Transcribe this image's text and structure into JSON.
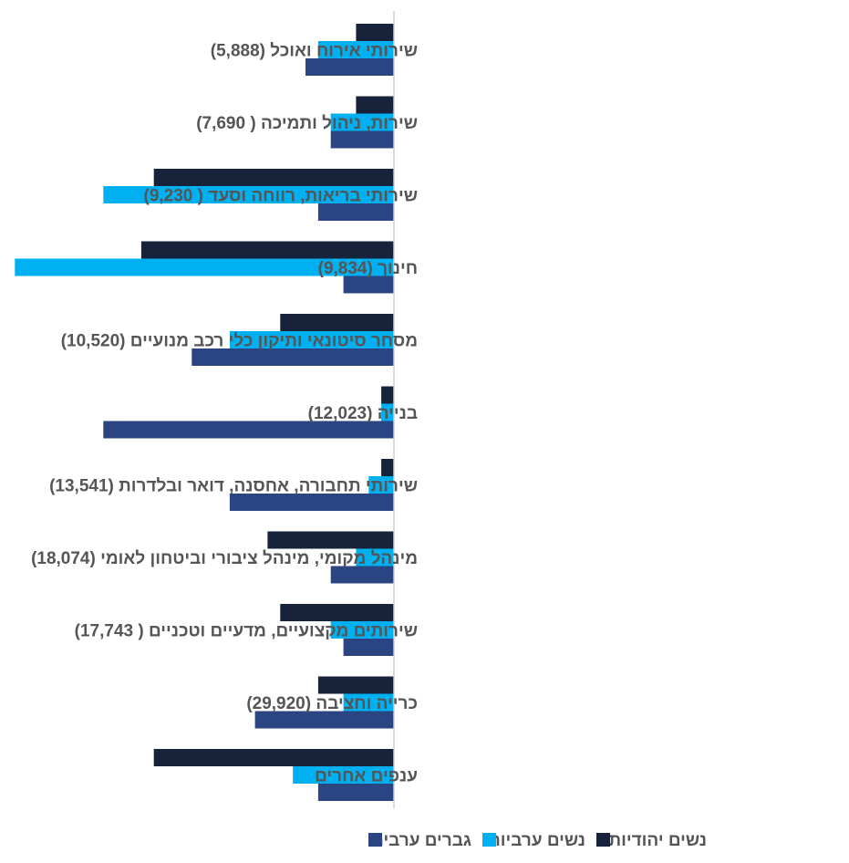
{
  "chart_data": {
    "type": "bar",
    "orientation": "horizontal",
    "direction": "rtl",
    "categories": [
      "שירותי אירוח ואוכל (5,888)",
      "שירות, ניהול ותמיכה ( 7,690)",
      "שירותי בריאות, רווחה וסעד ( 9,230)",
      "חינוך (9,834)",
      "מסחר סיטונאי ותיקון כלי רכב מנועיים (10,520)",
      "בנייה (12,023)",
      "שירותי תחבורה, אחסנה, דואר ובלדרות (13,541)",
      "מינהל מקומי, מינהל ציבורי וביטחון לאומי  (18,074)",
      "שירותים מקצועיים, מדעיים וטכניים ( 17,743)",
      "כרייה וחציבה (29,920)",
      "ענפים אחרים"
    ],
    "series": [
      {
        "name": "נשים יהודיות",
        "color": "#17223b",
        "values": [
          1.5,
          1.5,
          9.5,
          10,
          4.5,
          0.5,
          0.5,
          5,
          4.5,
          3,
          9.5
        ]
      },
      {
        "name": "נשים ערביות",
        "color": "#00b0f0",
        "values": [
          3,
          2.5,
          11.5,
          15,
          6.5,
          0.5,
          1,
          1.5,
          2.5,
          2,
          4
        ]
      },
      {
        "name": "גברים ערבים",
        "color": "#2b4482",
        "values": [
          3.5,
          2.5,
          3,
          2,
          8,
          11.5,
          6.5,
          2.5,
          2,
          5.5,
          3
        ]
      }
    ],
    "xlim": [
      0,
      15.3
    ],
    "grid": false,
    "legend_position": "bottom"
  }
}
